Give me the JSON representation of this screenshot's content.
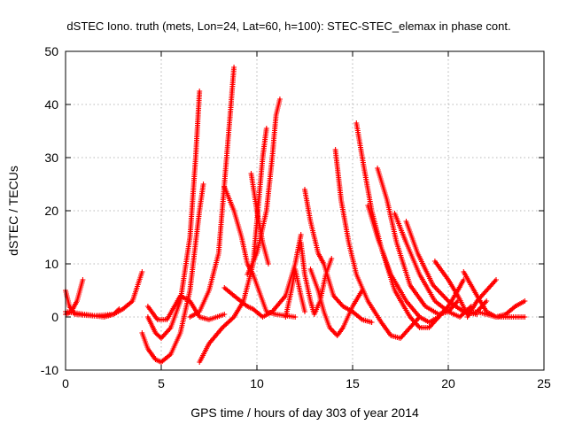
{
  "chart_data": {
    "type": "scatter",
    "title": "dSTEC Iono. truth (mets, Lon=24, Lat=60, h=100): STEC-STEC_elemax in phase cont.",
    "xlabel": "GPS time / hours of day 303 of year 2014",
    "ylabel": "dSTEC  / TECUs",
    "xlim": [
      0,
      25
    ],
    "ylim": [
      -10,
      50
    ],
    "xticks": [
      0,
      5,
      10,
      15,
      20,
      25
    ],
    "yticks": [
      -10,
      0,
      10,
      20,
      30,
      40,
      50
    ],
    "grid": true,
    "marker": "plus",
    "color": "#ff0000",
    "series": [
      {
        "values": [
          [
            0,
            5
          ],
          [
            0.2,
            2
          ],
          [
            0.5,
            0.5
          ],
          [
            1.5,
            0.2
          ],
          [
            2.5,
            0.5
          ],
          [
            3,
            1.5
          ],
          [
            3.5,
            3
          ],
          [
            4,
            8.5
          ]
        ]
      },
      {
        "values": [
          [
            0,
            0.5
          ],
          [
            0.3,
            1
          ],
          [
            0.6,
            3
          ],
          [
            0.9,
            7
          ]
        ]
      },
      {
        "values": [
          [
            0,
            1
          ],
          [
            1,
            0.5
          ],
          [
            2,
            0
          ],
          [
            2.5,
            0.5
          ],
          [
            2.8,
            1.5
          ]
        ]
      },
      {
        "values": [
          [
            4,
            -3
          ],
          [
            4.3,
            -6
          ],
          [
            4.7,
            -8
          ],
          [
            5,
            -8.5
          ],
          [
            5.5,
            -7
          ],
          [
            6,
            -3
          ],
          [
            6.5,
            5
          ],
          [
            7,
            20
          ],
          [
            7.2,
            25
          ]
        ]
      },
      {
        "values": [
          [
            4.3,
            0
          ],
          [
            4.7,
            -3
          ],
          [
            5,
            -4
          ],
          [
            5.5,
            -2
          ],
          [
            6,
            3
          ],
          [
            6.5,
            15
          ],
          [
            6.8,
            30
          ],
          [
            7,
            42.5
          ]
        ]
      },
      {
        "values": [
          [
            4.3,
            2
          ],
          [
            4.8,
            -0.5
          ],
          [
            5.3,
            -0.5
          ],
          [
            6,
            4
          ],
          [
            6.5,
            3
          ],
          [
            7,
            0
          ],
          [
            7.5,
            -0.5
          ],
          [
            8.3,
            0.5
          ]
        ]
      },
      {
        "values": [
          [
            7,
            -8.5
          ],
          [
            7.5,
            -5
          ],
          [
            8.2,
            -2
          ],
          [
            8.8,
            0
          ],
          [
            9.3,
            3
          ],
          [
            9.8,
            10
          ],
          [
            10.3,
            30
          ],
          [
            10.5,
            35.5
          ]
        ]
      },
      {
        "values": [
          [
            6.5,
            0
          ],
          [
            7,
            1
          ],
          [
            7.5,
            5
          ],
          [
            8,
            12
          ],
          [
            8.3,
            25
          ],
          [
            8.6,
            38
          ],
          [
            8.8,
            47
          ]
        ]
      },
      {
        "values": [
          [
            8.3,
            24.5
          ],
          [
            8.8,
            20
          ],
          [
            9.2,
            15
          ],
          [
            9.5,
            10
          ],
          [
            9.8,
            8
          ],
          [
            10.5,
            1
          ],
          [
            11,
            0.5
          ],
          [
            12,
            0
          ]
        ]
      },
      {
        "values": [
          [
            8.3,
            5.5
          ],
          [
            8.8,
            4
          ],
          [
            9.5,
            2
          ],
          [
            9.8,
            1.5
          ],
          [
            10.3,
            0
          ],
          [
            10.8,
            1
          ],
          [
            11.5,
            4
          ],
          [
            12,
            10
          ],
          [
            12.3,
            15.5
          ]
        ]
      },
      {
        "values": [
          [
            9.7,
            27
          ],
          [
            10,
            20
          ],
          [
            10.3,
            14
          ],
          [
            10.6,
            10
          ]
        ]
      },
      {
        "values": [
          [
            9.5,
            8
          ],
          [
            10,
            12
          ],
          [
            10.5,
            20
          ],
          [
            10.8,
            30
          ],
          [
            11,
            38
          ],
          [
            11.2,
            41
          ]
        ]
      },
      {
        "values": [
          [
            11.5,
            0
          ],
          [
            11.8,
            5
          ],
          [
            12,
            9
          ],
          [
            12.3,
            4
          ],
          [
            12.5,
            1
          ]
        ]
      },
      {
        "values": [
          [
            12.5,
            24
          ],
          [
            12.8,
            18
          ],
          [
            13.2,
            12
          ],
          [
            13.5,
            10
          ],
          [
            14,
            4
          ],
          [
            14.5,
            2
          ],
          [
            15,
            1
          ],
          [
            15.5,
            -0.5
          ],
          [
            16,
            -1
          ]
        ]
      },
      {
        "values": [
          [
            12.3,
            14
          ],
          [
            12.5,
            8
          ],
          [
            12.8,
            3
          ],
          [
            13,
            0.5
          ],
          [
            13.3,
            3
          ],
          [
            13.6,
            8
          ],
          [
            13.9,
            11
          ]
        ]
      },
      {
        "values": [
          [
            12.8,
            9
          ],
          [
            13.2,
            5
          ],
          [
            13.5,
            1
          ],
          [
            13.8,
            -2
          ],
          [
            14.2,
            -3.5
          ],
          [
            14.5,
            -2
          ],
          [
            15,
            2
          ],
          [
            15.5,
            5
          ]
        ]
      },
      {
        "values": [
          [
            14.1,
            31.5
          ],
          [
            14.4,
            22
          ],
          [
            14.8,
            14
          ],
          [
            15.2,
            8
          ],
          [
            15.8,
            3
          ],
          [
            16.5,
            -1
          ],
          [
            17,
            -3.5
          ],
          [
            17.5,
            -4
          ],
          [
            18,
            -2
          ],
          [
            18.5,
            0
          ]
        ]
      },
      {
        "values": [
          [
            15.2,
            36.5
          ],
          [
            15.6,
            28
          ],
          [
            16,
            20
          ],
          [
            16.5,
            13
          ],
          [
            17.2,
            5
          ],
          [
            18,
            0
          ],
          [
            18.5,
            -2
          ],
          [
            19,
            -2
          ],
          [
            19.5,
            0
          ]
        ]
      },
      {
        "values": [
          [
            15.8,
            21
          ],
          [
            16.3,
            15
          ],
          [
            17,
            8
          ],
          [
            17.8,
            3
          ],
          [
            18.5,
            0
          ],
          [
            19,
            -1
          ],
          [
            19.5,
            0
          ],
          [
            20,
            2
          ]
        ]
      },
      {
        "values": [
          [
            16.3,
            28
          ],
          [
            16.8,
            22
          ],
          [
            17.3,
            14
          ],
          [
            18,
            6
          ],
          [
            18.8,
            2
          ],
          [
            19.5,
            0.5
          ],
          [
            20,
            1
          ],
          [
            20.5,
            3
          ]
        ]
      },
      {
        "values": [
          [
            17.2,
            19.5
          ],
          [
            17.8,
            14
          ],
          [
            18.5,
            8
          ],
          [
            19.3,
            3
          ],
          [
            20,
            1
          ],
          [
            20.6,
            0
          ],
          [
            21.2,
            2
          ]
        ]
      },
      {
        "values": [
          [
            17.8,
            18
          ],
          [
            18.4,
            12
          ],
          [
            19.2,
            6
          ],
          [
            20,
            3
          ],
          [
            20.8,
            1
          ],
          [
            21.5,
            0.5
          ]
        ]
      },
      {
        "values": [
          [
            19.3,
            10.5
          ],
          [
            20,
            7
          ],
          [
            20.5,
            4
          ],
          [
            21,
            0.5
          ],
          [
            21.5,
            1
          ],
          [
            22,
            3
          ]
        ]
      },
      {
        "values": [
          [
            20.8,
            8.5
          ],
          [
            21.5,
            4
          ],
          [
            22,
            1
          ],
          [
            22.5,
            0
          ],
          [
            23,
            0.5
          ],
          [
            23.5,
            2
          ],
          [
            24,
            3
          ]
        ]
      },
      {
        "values": [
          [
            19.5,
            0
          ],
          [
            20,
            2
          ],
          [
            20.5,
            5
          ],
          [
            20.8,
            7
          ]
        ]
      },
      {
        "values": [
          [
            21,
            0
          ],
          [
            21.5,
            3
          ],
          [
            22,
            5
          ],
          [
            22.5,
            7
          ]
        ]
      },
      {
        "values": [
          [
            21.5,
            1
          ],
          [
            22.5,
            0
          ],
          [
            23.5,
            0
          ],
          [
            24,
            0
          ]
        ]
      }
    ]
  }
}
